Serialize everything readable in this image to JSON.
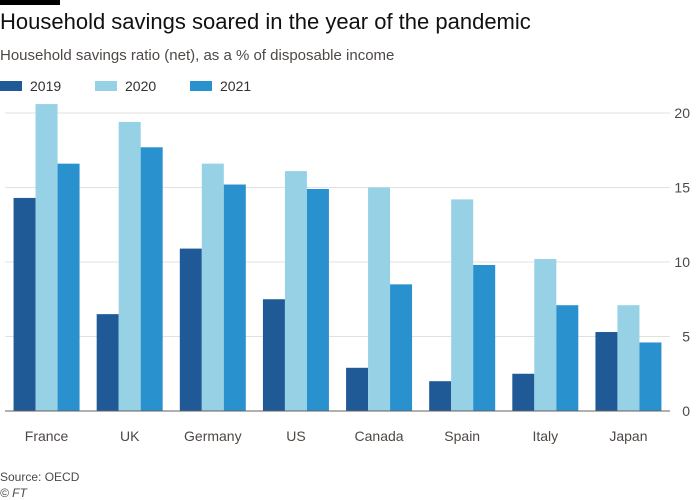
{
  "header": {
    "title": "Household savings soared in the year of the pandemic",
    "subtitle": "Household savings ratio (net), as a % of disposable income"
  },
  "chart_data": {
    "type": "bar",
    "title": "Household savings soared in the year of the pandemic",
    "subtitle": "Household savings ratio (net), as a % of disposable income",
    "xlabel": "",
    "ylabel": "",
    "categories": [
      "France",
      "UK",
      "Germany",
      "US",
      "Canada",
      "Spain",
      "Italy",
      "Japan"
    ],
    "series": [
      {
        "name": "2019",
        "color": "#1f5a96",
        "values": [
          14.3,
          6.5,
          10.9,
          7.5,
          2.9,
          2.0,
          2.5,
          5.3
        ]
      },
      {
        "name": "2020",
        "color": "#96d1e6",
        "values": [
          20.6,
          19.4,
          16.6,
          16.1,
          15.0,
          14.2,
          10.2,
          7.1
        ]
      },
      {
        "name": "2021",
        "color": "#2a91cf",
        "values": [
          16.6,
          17.7,
          15.2,
          14.9,
          8.5,
          9.8,
          7.1,
          4.6
        ]
      }
    ],
    "ylim": [
      0,
      20
    ],
    "yticks": [
      0,
      5,
      10,
      15,
      20
    ],
    "grid": true,
    "y_axis_side": "right",
    "legend_position": "top-left"
  },
  "footer": {
    "source": "Source: OECD",
    "credit": "© FT"
  }
}
